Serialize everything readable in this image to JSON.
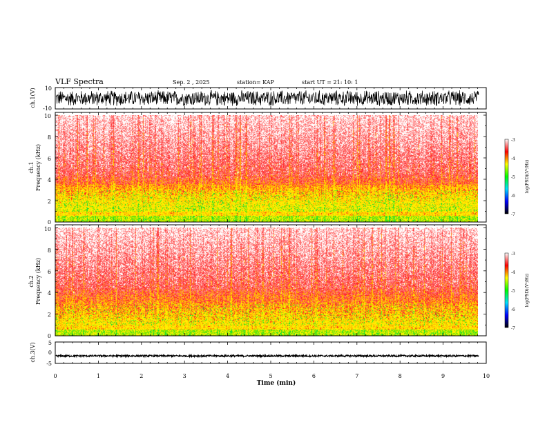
{
  "header": {
    "title": "VLF Spectra",
    "date": "Sep. 2  , 2025",
    "station": "station= KAP",
    "start": "start  UT =   21: 10: 1"
  },
  "colorbar": {
    "label": "log(PSD)(V²/Hz)",
    "ticks": [
      "-3",
      "-4",
      "-5",
      "-6",
      "-7"
    ],
    "colors": [
      "#ffffff",
      "#ff0000",
      "#ffff00",
      "#00ff00",
      "#00e0ff",
      "#0000ff",
      "#000000"
    ]
  },
  "chart_data": [
    {
      "type": "line",
      "title": "VLF Spectra",
      "ylabel": "ch.1(V)",
      "ylim": [
        -10,
        10
      ],
      "yticks": [
        "10",
        "-10"
      ],
      "xlabel": "",
      "xlim": [
        0,
        10
      ],
      "description_values": "noisy waveform oscillating roughly between -8 and 8 V",
      "series": [
        {
          "name": "ch.1",
          "amplitude": 8
        }
      ]
    },
    {
      "type": "heatmap",
      "ylabel": "ch.1",
      "ylabel2": "Frequency  (kHz)",
      "ylim": [
        0,
        10
      ],
      "yticks": [
        "0",
        "2",
        "4",
        "6",
        "8",
        "10"
      ],
      "xlim": [
        0,
        9.83
      ],
      "zlim": [
        -7,
        -3
      ],
      "zlabel": "log(PSD)(V²/Hz)"
    },
    {
      "type": "heatmap",
      "ylabel": "ch.2",
      "ylabel2": "Frequency  (kHz)",
      "ylim": [
        0,
        10
      ],
      "yticks": [
        "0",
        "2",
        "4",
        "6",
        "8",
        "10"
      ],
      "xlim": [
        0,
        9.83
      ],
      "zlim": [
        -7,
        -3
      ],
      "zlabel": "log(PSD)(V²/Hz)"
    },
    {
      "type": "line",
      "ylabel": "ch.3(V)",
      "ylim": [
        -5,
        5
      ],
      "yticks": [
        "5",
        "0",
        "-5"
      ],
      "xlabel": "Time  (min)",
      "xlim": [
        0,
        10
      ],
      "xticks": [
        "0",
        "1",
        "2",
        "3",
        "4",
        "5",
        "6",
        "7",
        "8",
        "9",
        "10"
      ],
      "series": [
        {
          "name": "ch.3",
          "offset": -1.5,
          "amplitude": 0.4
        }
      ]
    }
  ]
}
